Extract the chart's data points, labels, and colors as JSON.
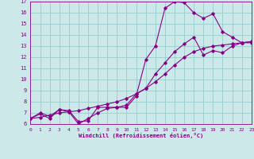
{
  "title": "",
  "xlabel": "Windchill (Refroidissement éolien,°C)",
  "bg_color": "#cce8e8",
  "line_color": "#880088",
  "grid_color": "#99cccc",
  "xmin": 0,
  "xmax": 23,
  "ymin": 6,
  "ymax": 17,
  "line1_x": [
    0,
    1,
    2,
    3,
    4,
    5,
    6,
    7,
    8,
    9,
    10,
    11,
    12,
    13,
    14,
    15,
    16,
    17,
    18,
    19,
    20,
    21,
    22,
    23
  ],
  "line1_y": [
    6.5,
    7.0,
    6.7,
    7.3,
    7.2,
    6.2,
    6.3,
    7.5,
    7.5,
    7.5,
    7.5,
    8.5,
    11.8,
    13.0,
    16.4,
    17.0,
    16.9,
    16.0,
    15.5,
    15.9,
    14.3,
    13.8,
    13.3,
    13.4
  ],
  "line2_x": [
    0,
    1,
    2,
    3,
    4,
    5,
    6,
    7,
    8,
    9,
    10,
    11,
    12,
    13,
    14,
    15,
    16,
    17,
    18,
    19,
    20,
    21,
    22,
    23
  ],
  "line2_y": [
    6.5,
    6.9,
    6.5,
    7.3,
    7.1,
    6.0,
    6.5,
    7.0,
    7.4,
    7.5,
    7.7,
    8.7,
    9.2,
    10.5,
    11.5,
    12.5,
    13.2,
    13.8,
    12.2,
    12.6,
    12.4,
    13.0,
    13.3,
    13.3
  ],
  "line3_x": [
    0,
    1,
    2,
    3,
    4,
    5,
    6,
    7,
    8,
    9,
    10,
    11,
    12,
    13,
    14,
    15,
    16,
    17,
    18,
    19,
    20,
    21,
    22,
    23
  ],
  "line3_y": [
    6.5,
    6.6,
    6.8,
    7.0,
    7.1,
    7.2,
    7.4,
    7.6,
    7.8,
    8.0,
    8.3,
    8.7,
    9.2,
    9.8,
    10.5,
    11.3,
    12.0,
    12.5,
    12.8,
    13.0,
    13.1,
    13.2,
    13.3,
    13.4
  ]
}
